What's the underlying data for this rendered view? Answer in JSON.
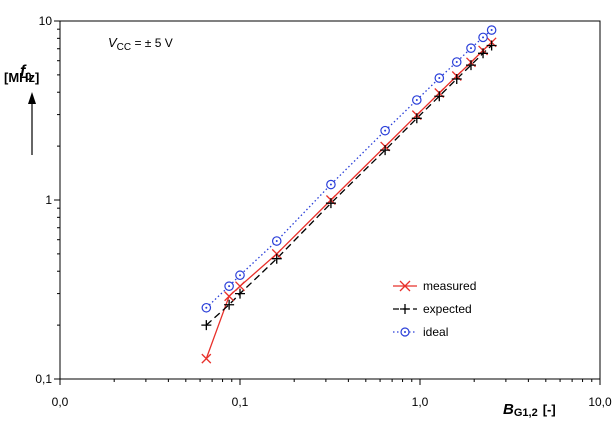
{
  "chart_data": {
    "type": "line",
    "x_scale": "log",
    "y_scale": "log",
    "xlim": [
      0.01,
      10
    ],
    "ylim": [
      0.1,
      10
    ],
    "x_ticks": [
      0.01,
      0.1,
      1,
      10
    ],
    "x_tick_labels": [
      "0,0",
      "0,1",
      "1,0",
      "10,0"
    ],
    "y_ticks": [
      0.1,
      1,
      10
    ],
    "y_tick_labels": [
      "0,1",
      "1",
      "10"
    ],
    "ylabel_symbol": "f",
    "ylabel_sub": "0",
    "ylabel_unit": "[MHz]",
    "xlabel_symbol": "B",
    "xlabel_sub": "G1,2",
    "xlabel_unit": "[-]",
    "annotation_symbol": "V",
    "annotation_sub": "CC",
    "annotation_rest": " = ± 5 V",
    "legend_position": "lower-right",
    "series": [
      {
        "name": "measured",
        "color": "#e8302a",
        "line": "solid",
        "marker": "x",
        "x": [
          0.065,
          0.087,
          0.1,
          0.16,
          0.32,
          0.64,
          0.96,
          1.28,
          1.6,
          1.92,
          2.24,
          2.5
        ],
        "y": [
          0.13,
          0.29,
          0.33,
          0.5,
          1.0,
          1.99,
          2.98,
          3.96,
          4.93,
          5.88,
          6.85,
          7.6
        ]
      },
      {
        "name": "expected",
        "color": "#000000",
        "line": "dashed",
        "marker": "+",
        "x": [
          0.065,
          0.087,
          0.1,
          0.16,
          0.32,
          0.64,
          0.96,
          1.28,
          1.6,
          1.92,
          2.24,
          2.5
        ],
        "y": [
          0.2,
          0.26,
          0.3,
          0.47,
          0.96,
          1.9,
          2.86,
          3.8,
          4.74,
          5.67,
          6.6,
          7.3
        ]
      },
      {
        "name": "ideal",
        "color": "#2a3fd9",
        "line": "dotted",
        "marker": "o",
        "x": [
          0.065,
          0.087,
          0.1,
          0.16,
          0.32,
          0.64,
          0.96,
          1.28,
          1.6,
          1.92,
          2.24,
          2.5
        ],
        "y": [
          0.25,
          0.33,
          0.38,
          0.59,
          1.22,
          2.44,
          3.62,
          4.8,
          5.9,
          7.05,
          8.1,
          8.9
        ]
      }
    ]
  }
}
